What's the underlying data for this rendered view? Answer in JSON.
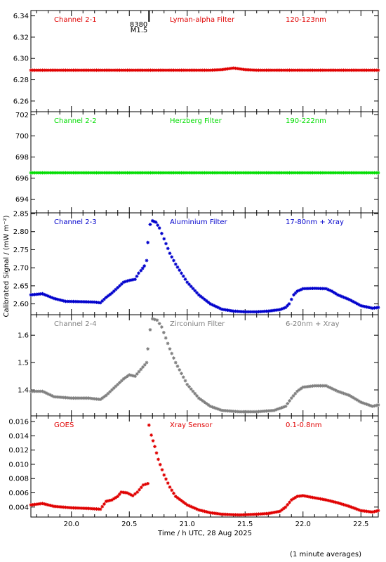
{
  "figure": {
    "xlabel": "Time / h UTC, 28 Aug 2025",
    "ylabel": "Calibrated Signal / (mW m⁻²)",
    "footnote": "(1 minute averages)",
    "flare_marker": {
      "line1": "8380",
      "line2": "M1.5",
      "x": 20.67
    },
    "x_ticks": [
      "20.0",
      "20.5",
      "21.0",
      "21.5",
      "22.0",
      "22.5"
    ]
  },
  "chart_data": [
    {
      "type": "scatter",
      "name": "Channel 2-1",
      "filter": "Lyman-alpha Filter",
      "band": "120-123nm",
      "color": "#e00000",
      "xlim": [
        19.65,
        22.65
      ],
      "ylim": [
        6.25,
        6.345
      ],
      "y_ticks": [
        6.26,
        6.28,
        6.3,
        6.32,
        6.34
      ],
      "y_tick_labels": [
        "6.26",
        "6.28",
        "6.30",
        "6.32",
        "6.34"
      ],
      "points": [
        [
          19.65,
          6.289
        ],
        [
          19.8,
          6.289
        ],
        [
          20.0,
          6.289
        ],
        [
          20.2,
          6.289
        ],
        [
          20.4,
          6.289
        ],
        [
          20.6,
          6.289
        ],
        [
          20.8,
          6.289
        ],
        [
          21.0,
          6.289
        ],
        [
          21.2,
          6.289
        ],
        [
          21.3,
          6.2895
        ],
        [
          21.4,
          6.291
        ],
        [
          21.5,
          6.2895
        ],
        [
          21.6,
          6.289
        ],
        [
          21.8,
          6.289
        ],
        [
          22.0,
          6.289
        ],
        [
          22.2,
          6.289
        ],
        [
          22.4,
          6.289
        ],
        [
          22.65,
          6.289
        ]
      ]
    },
    {
      "type": "scatter",
      "name": "Channel 2-2",
      "filter": "Herzberg Filter",
      "band": "190-222nm",
      "color": "#00dd00",
      "xlim": [
        19.65,
        22.65
      ],
      "ylim": [
        692.7,
        702.3
      ],
      "y_ticks": [
        694,
        696,
        698,
        700,
        702
      ],
      "y_tick_labels": [
        "694",
        "696",
        "698",
        "700",
        "702"
      ],
      "points": [
        [
          19.65,
          696.5
        ],
        [
          20.0,
          696.5
        ],
        [
          20.5,
          696.5
        ],
        [
          21.0,
          696.5
        ],
        [
          21.5,
          696.5
        ],
        [
          22.0,
          696.5
        ],
        [
          22.65,
          696.5
        ]
      ]
    },
    {
      "type": "scatter",
      "name": "Channel 2-3",
      "filter": "Aluminium Filter",
      "band": "17-80nm + Xray",
      "color": "#0000cc",
      "xlim": [
        19.65,
        22.65
      ],
      "ylim": [
        2.57,
        2.852
      ],
      "y_ticks": [
        2.6,
        2.65,
        2.7,
        2.75,
        2.8,
        2.85
      ],
      "y_tick_labels": [
        "2.60",
        "2.65",
        "2.70",
        "2.75",
        "2.80",
        "2.85"
      ],
      "points": [
        [
          19.65,
          2.625
        ],
        [
          19.75,
          2.628
        ],
        [
          19.85,
          2.615
        ],
        [
          19.95,
          2.607
        ],
        [
          20.1,
          2.606
        ],
        [
          20.2,
          2.605
        ],
        [
          20.25,
          2.603
        ],
        [
          20.3,
          2.618
        ],
        [
          20.35,
          2.63
        ],
        [
          20.4,
          2.645
        ],
        [
          20.45,
          2.66
        ],
        [
          20.5,
          2.665
        ],
        [
          20.55,
          2.668
        ],
        [
          20.58,
          2.685
        ],
        [
          20.6,
          2.692
        ],
        [
          20.63,
          2.705
        ],
        [
          20.65,
          2.72
        ],
        [
          20.66,
          2.77
        ],
        [
          20.68,
          2.82
        ],
        [
          20.7,
          2.83
        ],
        [
          20.73,
          2.826
        ],
        [
          20.76,
          2.81
        ],
        [
          20.8,
          2.78
        ],
        [
          20.85,
          2.74
        ],
        [
          20.9,
          2.71
        ],
        [
          20.95,
          2.685
        ],
        [
          21.0,
          2.66
        ],
        [
          21.1,
          2.625
        ],
        [
          21.2,
          2.6
        ],
        [
          21.3,
          2.585
        ],
        [
          21.4,
          2.58
        ],
        [
          21.5,
          2.578
        ],
        [
          21.6,
          2.578
        ],
        [
          21.7,
          2.58
        ],
        [
          21.8,
          2.584
        ],
        [
          21.85,
          2.59
        ],
        [
          21.88,
          2.6
        ],
        [
          21.92,
          2.625
        ],
        [
          21.95,
          2.635
        ],
        [
          22.0,
          2.642
        ],
        [
          22.1,
          2.643
        ],
        [
          22.2,
          2.642
        ],
        [
          22.25,
          2.635
        ],
        [
          22.3,
          2.625
        ],
        [
          22.4,
          2.612
        ],
        [
          22.5,
          2.595
        ],
        [
          22.6,
          2.588
        ],
        [
          22.65,
          2.59
        ]
      ]
    },
    {
      "type": "scatter",
      "name": "Channel 2-4",
      "filter": "Zirconium Filter",
      "band": "6-20nm + Xray",
      "color": "#808080",
      "xlim": [
        19.65,
        22.65
      ],
      "ylim": [
        1.305,
        1.675
      ],
      "y_ticks": [
        1.4,
        1.5,
        1.6
      ],
      "y_tick_labels": [
        "1.4",
        "1.5",
        "1.6"
      ],
      "points": [
        [
          19.65,
          1.395
        ],
        [
          19.75,
          1.395
        ],
        [
          19.85,
          1.375
        ],
        [
          20.0,
          1.37
        ],
        [
          20.15,
          1.37
        ],
        [
          20.25,
          1.365
        ],
        [
          20.3,
          1.38
        ],
        [
          20.4,
          1.42
        ],
        [
          20.45,
          1.44
        ],
        [
          20.5,
          1.455
        ],
        [
          20.55,
          1.45
        ],
        [
          20.6,
          1.475
        ],
        [
          20.65,
          1.5
        ],
        [
          20.66,
          1.55
        ],
        [
          20.68,
          1.62
        ],
        [
          20.7,
          1.66
        ],
        [
          20.74,
          1.655
        ],
        [
          20.78,
          1.63
        ],
        [
          20.85,
          1.55
        ],
        [
          20.9,
          1.5
        ],
        [
          21.0,
          1.42
        ],
        [
          21.1,
          1.37
        ],
        [
          21.2,
          1.34
        ],
        [
          21.3,
          1.325
        ],
        [
          21.45,
          1.32
        ],
        [
          21.6,
          1.32
        ],
        [
          21.75,
          1.325
        ],
        [
          21.85,
          1.34
        ],
        [
          21.9,
          1.37
        ],
        [
          21.95,
          1.395
        ],
        [
          22.0,
          1.41
        ],
        [
          22.1,
          1.415
        ],
        [
          22.2,
          1.415
        ],
        [
          22.3,
          1.395
        ],
        [
          22.4,
          1.38
        ],
        [
          22.5,
          1.355
        ],
        [
          22.6,
          1.34
        ],
        [
          22.65,
          1.345
        ]
      ]
    },
    {
      "type": "scatter",
      "name": "GOES",
      "filter": "Xray Sensor",
      "band": "0.1-0.8nm",
      "color": "#e00000",
      "xlim": [
        19.65,
        22.65
      ],
      "ylim": [
        0.0026,
        0.0168
      ],
      "y_ticks": [
        0.004,
        0.006,
        0.008,
        0.01,
        0.012,
        0.014,
        0.016
      ],
      "y_tick_labels": [
        "0.004",
        "0.006",
        "0.008",
        "0.010",
        "0.012",
        "0.014",
        "0.016"
      ],
      "points": [
        [
          19.65,
          0.0043
        ],
        [
          19.75,
          0.0045
        ],
        [
          19.85,
          0.0041
        ],
        [
          20.0,
          0.0039
        ],
        [
          20.15,
          0.0038
        ],
        [
          20.25,
          0.0037
        ],
        [
          20.3,
          0.0048
        ],
        [
          20.35,
          0.005
        ],
        [
          20.4,
          0.0055
        ],
        [
          20.43,
          0.0061
        ],
        [
          20.48,
          0.006
        ],
        [
          20.53,
          0.0056
        ],
        [
          20.57,
          0.0061
        ],
        [
          20.62,
          0.0071
        ],
        [
          20.66,
          0.0073
        ],
        [
          20.67,
          0.0155
        ],
        [
          20.69,
          0.0141
        ],
        [
          20.72,
          0.0125
        ],
        [
          20.75,
          0.0107
        ],
        [
          20.8,
          0.0085
        ],
        [
          20.85,
          0.0068
        ],
        [
          20.9,
          0.0055
        ],
        [
          21.0,
          0.0043
        ],
        [
          21.1,
          0.0036
        ],
        [
          21.2,
          0.0032
        ],
        [
          21.3,
          0.003
        ],
        [
          21.45,
          0.0029
        ],
        [
          21.6,
          0.003
        ],
        [
          21.7,
          0.0031
        ],
        [
          21.8,
          0.0034
        ],
        [
          21.85,
          0.004
        ],
        [
          21.9,
          0.005
        ],
        [
          21.95,
          0.0055
        ],
        [
          22.0,
          0.0056
        ],
        [
          22.1,
          0.0053
        ],
        [
          22.2,
          0.005
        ],
        [
          22.3,
          0.0046
        ],
        [
          22.4,
          0.0041
        ],
        [
          22.5,
          0.0035
        ],
        [
          22.6,
          0.0033
        ],
        [
          22.65,
          0.0035
        ]
      ]
    }
  ]
}
